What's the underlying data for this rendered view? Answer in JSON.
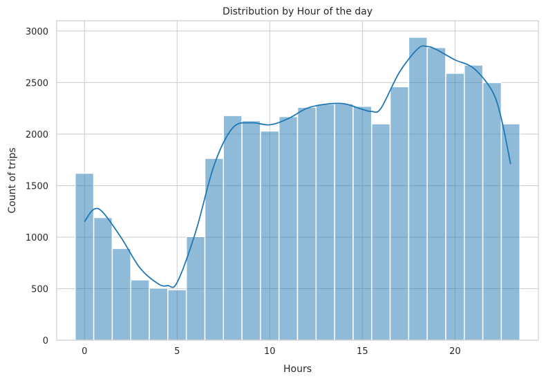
{
  "chart_data": {
    "type": "bar",
    "title": "Distribution by Hour of the day",
    "xlabel": "Hours",
    "ylabel": "Count of trips",
    "x": [
      0,
      1,
      2,
      3,
      4,
      5,
      6,
      7,
      8,
      9,
      10,
      11,
      12,
      13,
      14,
      15,
      16,
      17,
      18,
      19,
      20,
      21,
      22,
      23
    ],
    "values": [
      1620,
      1190,
      890,
      585,
      505,
      490,
      1005,
      1765,
      2180,
      2130,
      2030,
      2170,
      2260,
      2290,
      2295,
      2270,
      2100,
      2460,
      2940,
      2840,
      2590,
      2670,
      2500,
      2100
    ],
    "kde": {
      "x": [
        0,
        0.5,
        1,
        2,
        3,
        4,
        4.5,
        5,
        6,
        7,
        8,
        9,
        10,
        11,
        12,
        13,
        14,
        15,
        15.5,
        16,
        17,
        18,
        18.5,
        19,
        20,
        21,
        22,
        22.5,
        23
      ],
      "y": [
        1150,
        1270,
        1240,
        990,
        700,
        545,
        530,
        560,
        1050,
        1700,
        2060,
        2110,
        2090,
        2150,
        2250,
        2290,
        2295,
        2240,
        2220,
        2250,
        2600,
        2830,
        2850,
        2820,
        2720,
        2640,
        2420,
        2150,
        1710
      ]
    },
    "xlim": [
      -1.5,
      24.5
    ],
    "ylim": [
      0,
      3100
    ],
    "xticks": [
      0,
      5,
      10,
      15,
      20
    ],
    "yticks": [
      0,
      500,
      1000,
      1500,
      2000,
      2500,
      3000
    ],
    "grid": true,
    "legend": "none",
    "color": "#1f77b4"
  }
}
